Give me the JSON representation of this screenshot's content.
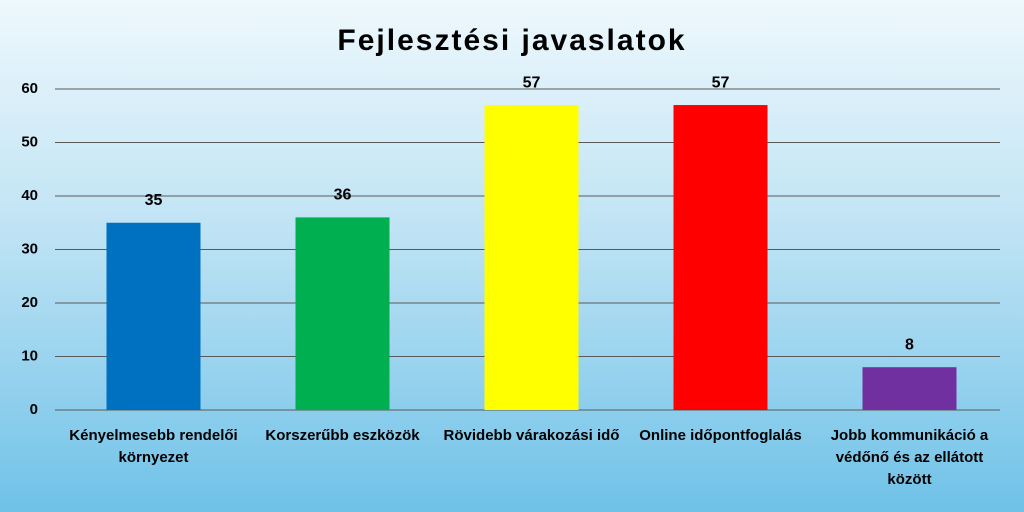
{
  "chart_data": {
    "type": "bar",
    "title": "Fejlesztési javaslatok",
    "categories": [
      "Kényelmesebb rendelői környezet",
      "Korszerűbb eszközök",
      "Rövidebb várakozási idő",
      "Online időpontfoglalás",
      "Jobb kommunikáció a védőnő és az ellátott között"
    ],
    "values": [
      35,
      36,
      57,
      57,
      8
    ],
    "colors": [
      "#0070c0",
      "#00b050",
      "#ffff00",
      "#ff0000",
      "#7030a0"
    ],
    "ylim": [
      0,
      60
    ],
    "yticks": [
      0,
      10,
      20,
      30,
      40,
      50,
      60
    ],
    "grid": true
  }
}
